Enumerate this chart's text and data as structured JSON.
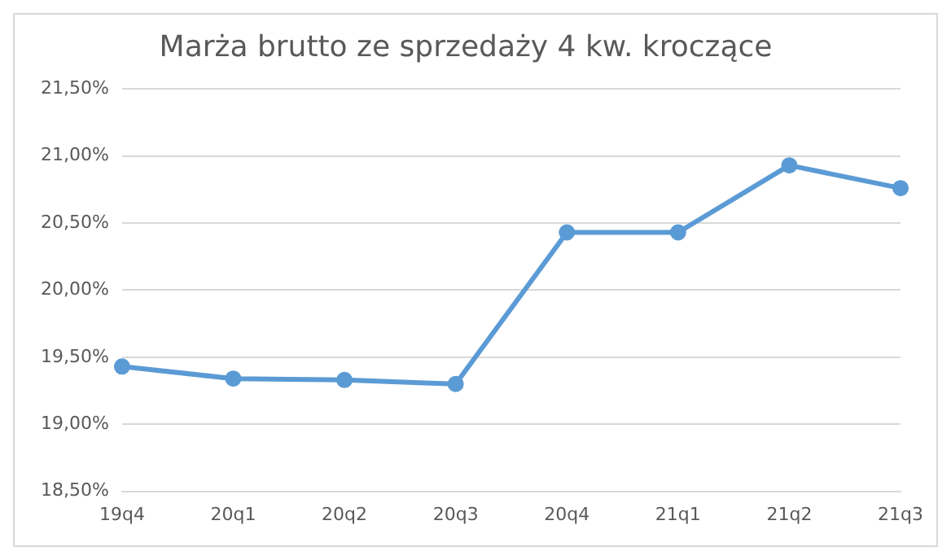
{
  "chart_data": {
    "type": "line",
    "title": "Marża brutto ze sprzedaży 4 kw. kroczące",
    "categories": [
      "19q4",
      "20q1",
      "20q2",
      "20q3",
      "20q4",
      "21q1",
      "21q2",
      "21q3"
    ],
    "series": [
      {
        "color": "#5b9bd5",
        "values": [
          19.43,
          19.34,
          19.33,
          19.3,
          20.43,
          20.43,
          20.93,
          20.76
        ]
      }
    ],
    "ylim": [
      18.5,
      21.5
    ],
    "yticks": [
      {
        "value": 18.5,
        "label": "18,50%"
      },
      {
        "value": 19,
        "label": "19,00%"
      },
      {
        "value": 19.5,
        "label": "19,50%"
      },
      {
        "value": 20,
        "label": "20,00%"
      },
      {
        "value": 20.5,
        "label": "20,50%"
      },
      {
        "value": 21,
        "label": "21,00%"
      },
      {
        "value": 21.5,
        "label": "21,50%"
      }
    ],
    "grid": "y",
    "marker": "circle",
    "line_style": "solid",
    "legend": false
  }
}
